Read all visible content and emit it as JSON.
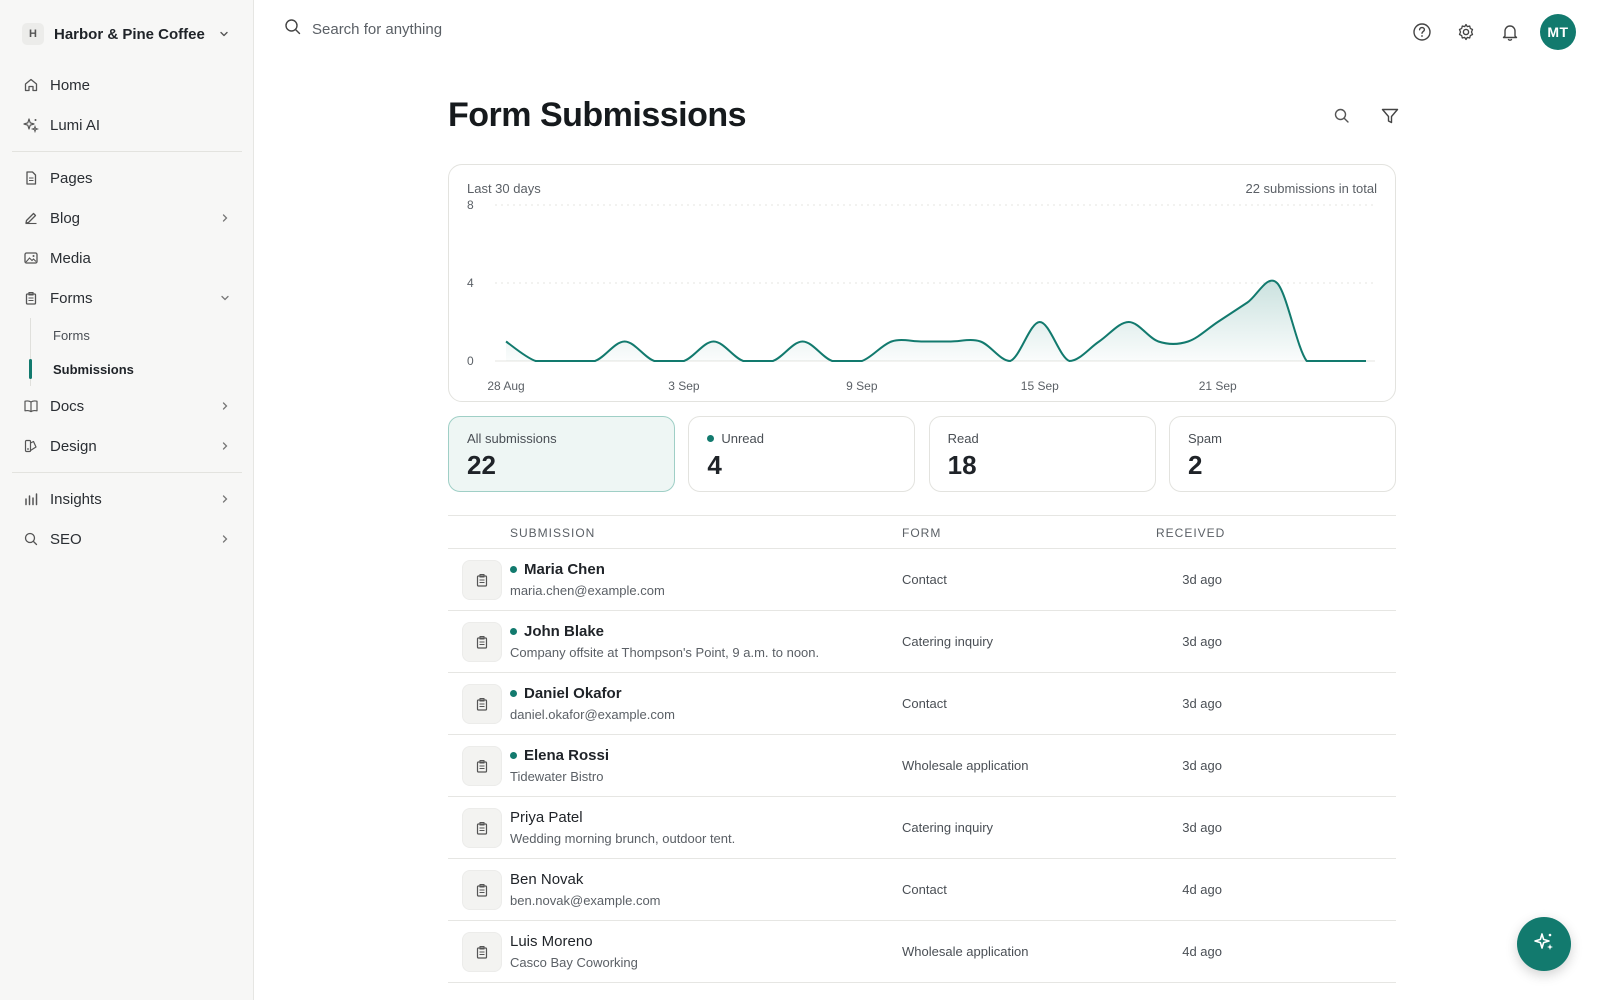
{
  "workspace": {
    "badge": "H",
    "name": "Harbor & Pine Coffee"
  },
  "sidebar": {
    "group1": [
      {
        "label": "Home",
        "icon": "home-icon"
      },
      {
        "label": "Lumi AI",
        "icon": "sparkles-icon"
      }
    ],
    "group2": [
      {
        "label": "Pages",
        "icon": "page-icon"
      },
      {
        "label": "Blog",
        "icon": "pen-icon",
        "expandable": true
      },
      {
        "label": "Media",
        "icon": "image-icon"
      },
      {
        "label": "Forms",
        "icon": "forms-icon",
        "expanded": true
      }
    ],
    "forms_sub": [
      {
        "label": "Forms"
      },
      {
        "label": "Submissions",
        "active": true
      }
    ],
    "group3": [
      {
        "label": "Docs",
        "icon": "book-icon",
        "expandable": true
      },
      {
        "label": "Design",
        "icon": "design-icon",
        "expandable": true
      }
    ],
    "group4": [
      {
        "label": "Insights",
        "icon": "bar-chart-icon",
        "expandable": true
      },
      {
        "label": "SEO",
        "icon": "search-icon",
        "expandable": true
      }
    ]
  },
  "topbar": {
    "search_placeholder": "Search for anything",
    "icons": [
      "help-icon",
      "gear-icon",
      "bell-icon"
    ],
    "avatar_initials": "MT"
  },
  "page": {
    "title": "Form Submissions"
  },
  "chart": {
    "caption_left": "Last 30 days",
    "caption_right": "22 submissions in total",
    "accent": "#127a6e"
  },
  "chart_data": {
    "type": "area",
    "x": [
      "28 Aug",
      "29 Aug",
      "30 Aug",
      "31 Aug",
      "1 Sep",
      "2 Sep",
      "3 Sep",
      "4 Sep",
      "5 Sep",
      "6 Sep",
      "7 Sep",
      "8 Sep",
      "9 Sep",
      "10 Sep",
      "11 Sep",
      "12 Sep",
      "13 Sep",
      "14 Sep",
      "15 Sep",
      "16 Sep",
      "17 Sep",
      "18 Sep",
      "19 Sep",
      "20 Sep",
      "21 Sep",
      "22 Sep",
      "23 Sep",
      "24 Sep",
      "25 Sep",
      "26 Sep"
    ],
    "values": [
      1,
      0,
      0,
      0,
      1,
      0,
      0,
      1,
      0,
      0,
      1,
      0,
      0,
      1,
      1,
      1,
      1,
      0,
      2,
      0,
      1,
      2,
      1,
      1,
      2,
      3,
      4,
      0,
      0,
      0
    ],
    "xticks": [
      "28 Aug",
      "3 Sep",
      "9 Sep",
      "15 Sep",
      "21 Sep"
    ],
    "yticks": [
      0,
      4,
      8
    ],
    "ylim": [
      0,
      8
    ],
    "grid": true
  },
  "stats": [
    {
      "label": "All submissions",
      "value": "22",
      "active": true,
      "dot": false
    },
    {
      "label": "Unread",
      "value": "4",
      "active": false,
      "dot": true
    },
    {
      "label": "Read",
      "value": "18",
      "active": false,
      "dot": false
    },
    {
      "label": "Spam",
      "value": "2",
      "active": false,
      "dot": false
    }
  ],
  "table": {
    "headers": {
      "submission": "SUBMISSION",
      "form": "FORM",
      "received": "RECEIVED"
    },
    "rows": [
      {
        "name": "Maria Chen",
        "sub": "maria.chen@example.com",
        "form": "Contact",
        "received": "3d ago",
        "unread": true
      },
      {
        "name": "John Blake",
        "sub": "Company offsite at Thompson's Point, 9 a.m. to noon.",
        "form": "Catering inquiry",
        "received": "3d ago",
        "unread": true
      },
      {
        "name": "Daniel Okafor",
        "sub": "daniel.okafor@example.com",
        "form": "Contact",
        "received": "3d ago",
        "unread": true
      },
      {
        "name": "Elena Rossi",
        "sub": "Tidewater Bistro",
        "form": "Wholesale application",
        "received": "3d ago",
        "unread": true
      },
      {
        "name": "Priya Patel",
        "sub": "Wedding morning brunch, outdoor tent.",
        "form": "Catering inquiry",
        "received": "3d ago",
        "unread": false
      },
      {
        "name": "Ben Novak",
        "sub": "ben.novak@example.com",
        "form": "Contact",
        "received": "4d ago",
        "unread": false
      },
      {
        "name": "Luis Moreno",
        "sub": "Casco Bay Coworking",
        "form": "Wholesale application",
        "received": "4d ago",
        "unread": false
      }
    ]
  },
  "fab": {
    "icon": "sparkles-icon"
  }
}
